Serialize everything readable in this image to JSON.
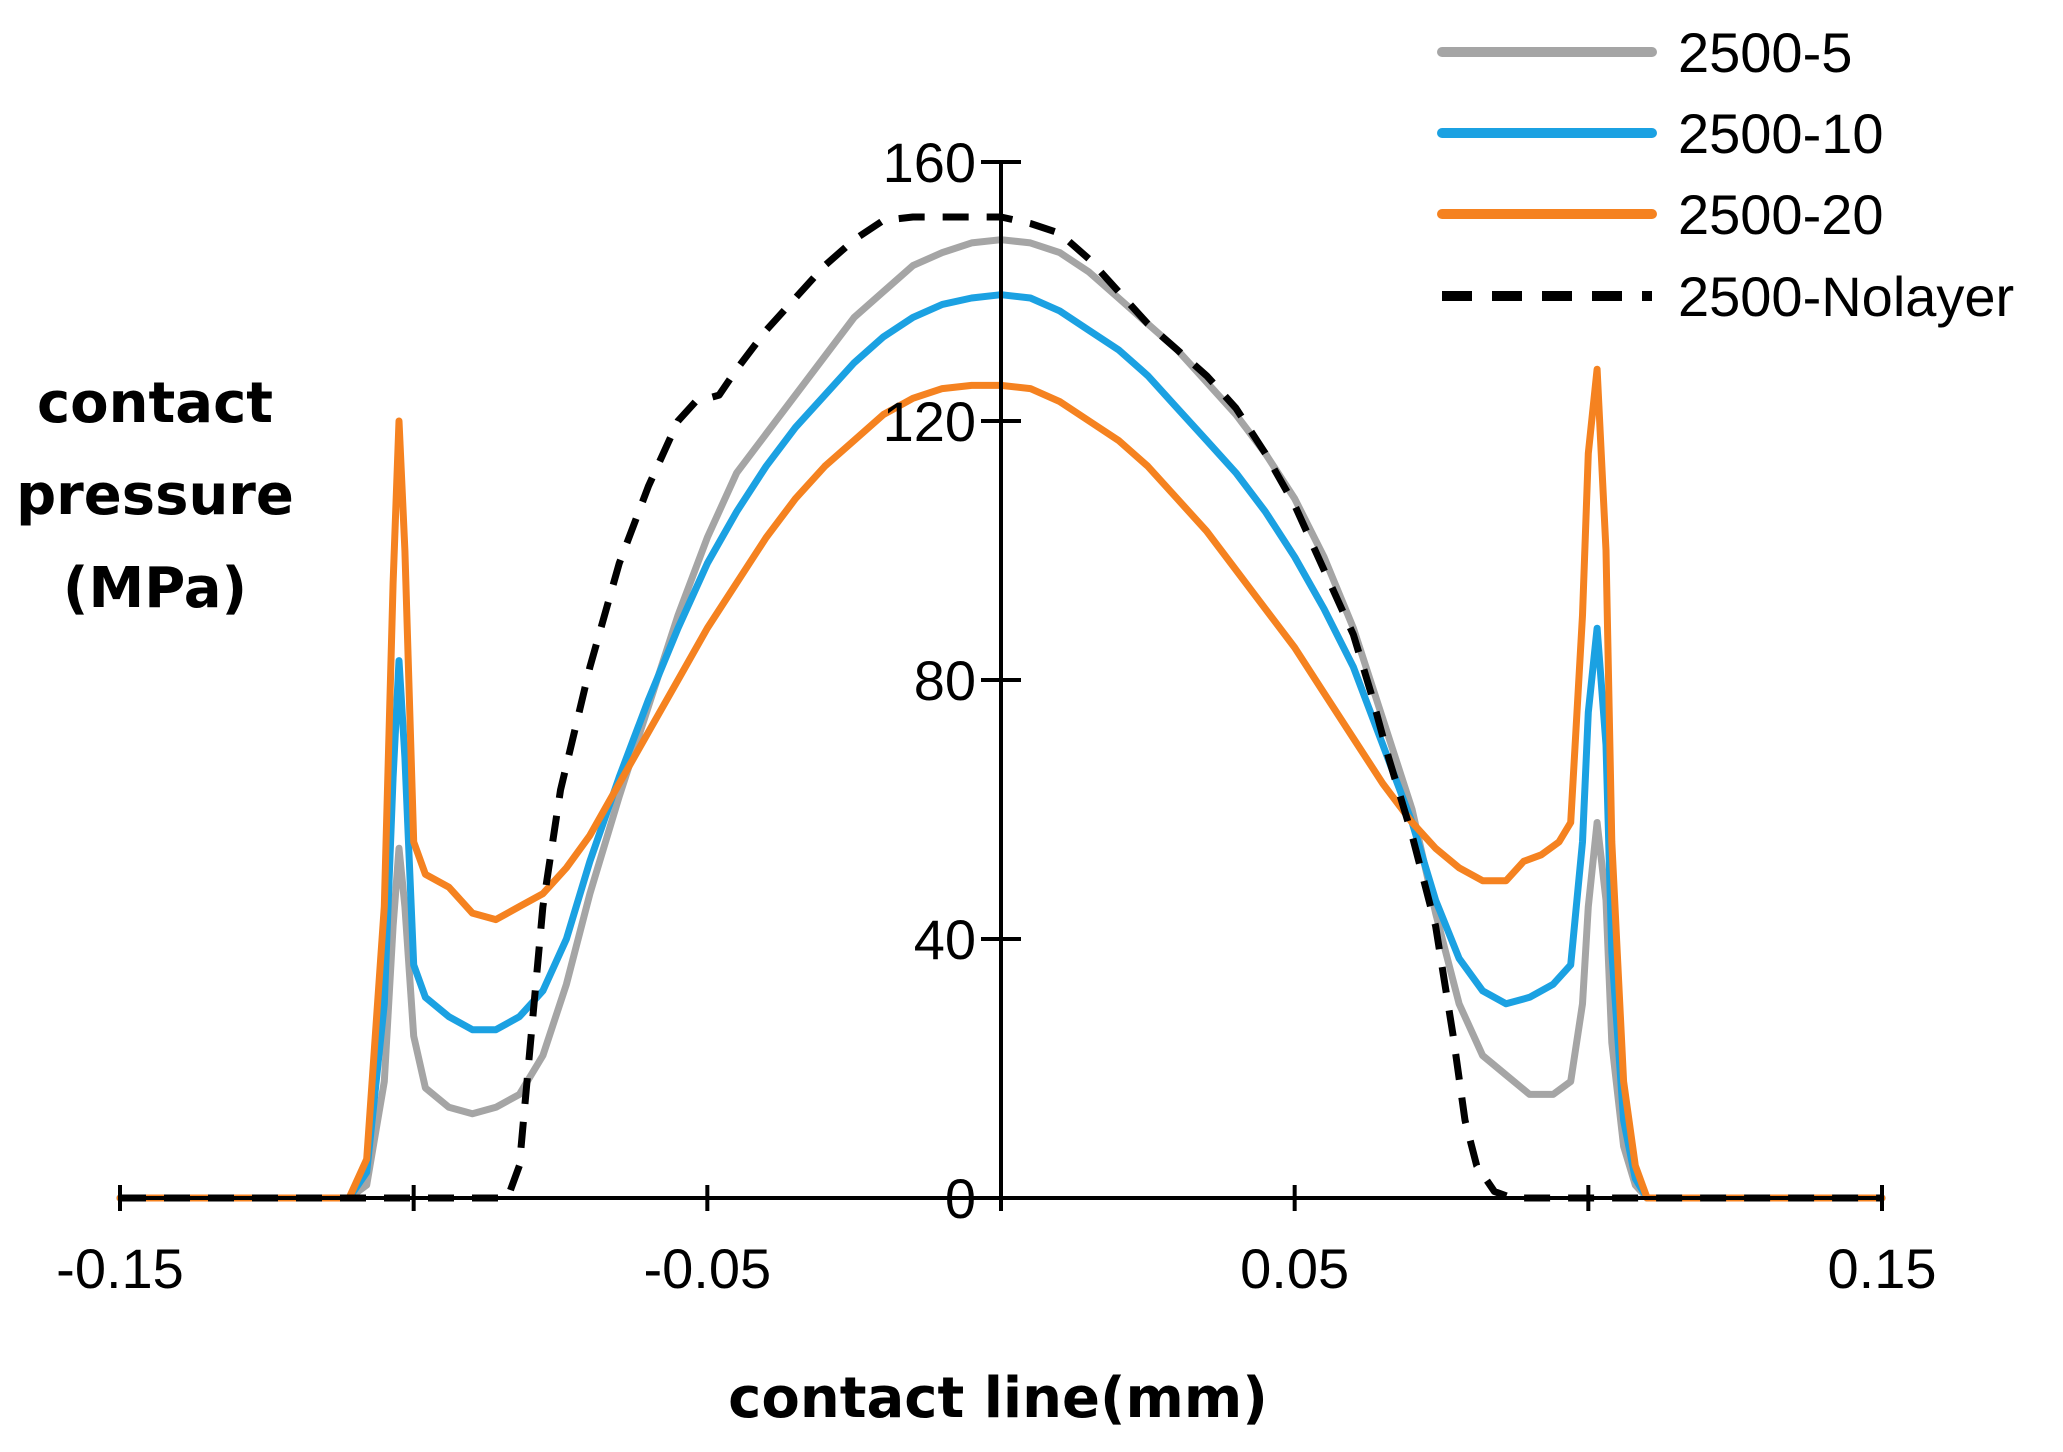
{
  "chart_data": {
    "type": "line",
    "title": "",
    "xlabel": "contact line(mm)",
    "ylabel_lines": [
      "contact",
      "pressure",
      "(MPa)"
    ],
    "xlim": [
      -0.15,
      0.15
    ],
    "ylim": [
      0,
      160
    ],
    "x_ticks": [
      -0.15,
      -0.05,
      0.05,
      0.15
    ],
    "x_tick_labels": [
      "-0.15",
      "-0.05",
      "0.05",
      "0.15"
    ],
    "x_minor_ticks": [
      -0.1,
      0,
      0.1
    ],
    "y_ticks": [
      0,
      40,
      80,
      120,
      160
    ],
    "y_tick_labels": [
      "0",
      "40",
      "80",
      "120",
      "160"
    ],
    "grid": false,
    "legend_position": "top-right",
    "series": [
      {
        "name": "2500-5",
        "color": "#a5a5a5",
        "dash": "solid",
        "points": [
          [
            -0.15,
            0
          ],
          [
            -0.111,
            0
          ],
          [
            -0.108,
            2
          ],
          [
            -0.105,
            18
          ],
          [
            -0.1035,
            42
          ],
          [
            -0.1025,
            54
          ],
          [
            -0.1015,
            45
          ],
          [
            -0.1,
            25
          ],
          [
            -0.098,
            17
          ],
          [
            -0.094,
            14
          ],
          [
            -0.09,
            13
          ],
          [
            -0.086,
            14
          ],
          [
            -0.082,
            16
          ],
          [
            -0.078,
            22
          ],
          [
            -0.074,
            33
          ],
          [
            -0.07,
            47
          ],
          [
            -0.065,
            62
          ],
          [
            -0.06,
            76
          ],
          [
            -0.055,
            90
          ],
          [
            -0.05,
            102
          ],
          [
            -0.045,
            112
          ],
          [
            -0.04,
            118
          ],
          [
            -0.035,
            124
          ],
          [
            -0.03,
            130
          ],
          [
            -0.025,
            136
          ],
          [
            -0.02,
            140
          ],
          [
            -0.015,
            144
          ],
          [
            -0.01,
            146
          ],
          [
            -0.005,
            147.5
          ],
          [
            0,
            148
          ],
          [
            0.005,
            147.5
          ],
          [
            0.01,
            146
          ],
          [
            0.015,
            143
          ],
          [
            0.02,
            139
          ],
          [
            0.025,
            135
          ],
          [
            0.03,
            131
          ],
          [
            0.035,
            126
          ],
          [
            0.04,
            121
          ],
          [
            0.045,
            115
          ],
          [
            0.05,
            108
          ],
          [
            0.055,
            99
          ],
          [
            0.06,
            88
          ],
          [
            0.065,
            74
          ],
          [
            0.07,
            60
          ],
          [
            0.074,
            44
          ],
          [
            0.078,
            30
          ],
          [
            0.082,
            22
          ],
          [
            0.086,
            19
          ],
          [
            0.09,
            16
          ],
          [
            0.094,
            16
          ],
          [
            0.097,
            18
          ],
          [
            0.099,
            30
          ],
          [
            0.1,
            45
          ],
          [
            0.1015,
            58
          ],
          [
            0.103,
            46
          ],
          [
            0.104,
            24
          ],
          [
            0.106,
            8
          ],
          [
            0.108,
            2
          ],
          [
            0.11,
            0
          ],
          [
            0.15,
            0
          ]
        ]
      },
      {
        "name": "2500-10",
        "color": "#1ba1e2",
        "dash": "solid",
        "points": [
          [
            -0.15,
            0
          ],
          [
            -0.111,
            0
          ],
          [
            -0.108,
            4
          ],
          [
            -0.105,
            30
          ],
          [
            -0.1035,
            65
          ],
          [
            -0.1025,
            83
          ],
          [
            -0.1015,
            68
          ],
          [
            -0.1,
            36
          ],
          [
            -0.098,
            31
          ],
          [
            -0.094,
            28
          ],
          [
            -0.09,
            26
          ],
          [
            -0.086,
            26
          ],
          [
            -0.082,
            28
          ],
          [
            -0.078,
            32
          ],
          [
            -0.074,
            40
          ],
          [
            -0.07,
            52
          ],
          [
            -0.065,
            65
          ],
          [
            -0.06,
            77
          ],
          [
            -0.055,
            88
          ],
          [
            -0.05,
            98
          ],
          [
            -0.045,
            106
          ],
          [
            -0.04,
            113
          ],
          [
            -0.035,
            119
          ],
          [
            -0.03,
            124
          ],
          [
            -0.025,
            129
          ],
          [
            -0.02,
            133
          ],
          [
            -0.015,
            136
          ],
          [
            -0.01,
            138
          ],
          [
            -0.005,
            139
          ],
          [
            0,
            139.5
          ],
          [
            0.005,
            139
          ],
          [
            0.01,
            137
          ],
          [
            0.015,
            134
          ],
          [
            0.02,
            131
          ],
          [
            0.025,
            127
          ],
          [
            0.03,
            122
          ],
          [
            0.035,
            117
          ],
          [
            0.04,
            112
          ],
          [
            0.045,
            106
          ],
          [
            0.05,
            99
          ],
          [
            0.055,
            91
          ],
          [
            0.06,
            82
          ],
          [
            0.065,
            70
          ],
          [
            0.07,
            58
          ],
          [
            0.074,
            46
          ],
          [
            0.078,
            37
          ],
          [
            0.082,
            32
          ],
          [
            0.086,
            30
          ],
          [
            0.09,
            31
          ],
          [
            0.094,
            33
          ],
          [
            0.097,
            36
          ],
          [
            0.099,
            55
          ],
          [
            0.1,
            75
          ],
          [
            0.1015,
            88
          ],
          [
            0.103,
            70
          ],
          [
            0.104,
            38
          ],
          [
            0.106,
            12
          ],
          [
            0.108,
            3
          ],
          [
            0.11,
            0
          ],
          [
            0.15,
            0
          ]
        ]
      },
      {
        "name": "2500-20",
        "color": "#f58220",
        "dash": "solid",
        "points": [
          [
            -0.15,
            0
          ],
          [
            -0.111,
            0
          ],
          [
            -0.108,
            6
          ],
          [
            -0.105,
            45
          ],
          [
            -0.1035,
            95
          ],
          [
            -0.1025,
            120
          ],
          [
            -0.1015,
            100
          ],
          [
            -0.1,
            55
          ],
          [
            -0.098,
            50
          ],
          [
            -0.094,
            48
          ],
          [
            -0.092,
            46
          ],
          [
            -0.09,
            44
          ],
          [
            -0.086,
            43
          ],
          [
            -0.082,
            45
          ],
          [
            -0.078,
            47
          ],
          [
            -0.074,
            51
          ],
          [
            -0.07,
            56
          ],
          [
            -0.065,
            64
          ],
          [
            -0.06,
            72
          ],
          [
            -0.055,
            80
          ],
          [
            -0.05,
            88
          ],
          [
            -0.045,
            95
          ],
          [
            -0.04,
            102
          ],
          [
            -0.035,
            108
          ],
          [
            -0.03,
            113
          ],
          [
            -0.025,
            117
          ],
          [
            -0.02,
            121
          ],
          [
            -0.015,
            123.5
          ],
          [
            -0.01,
            125
          ],
          [
            -0.005,
            125.5
          ],
          [
            0,
            125.5
          ],
          [
            0.005,
            125
          ],
          [
            0.01,
            123
          ],
          [
            0.015,
            120
          ],
          [
            0.02,
            117
          ],
          [
            0.025,
            113
          ],
          [
            0.03,
            108
          ],
          [
            0.035,
            103
          ],
          [
            0.04,
            97
          ],
          [
            0.045,
            91
          ],
          [
            0.05,
            85
          ],
          [
            0.055,
            78
          ],
          [
            0.06,
            71
          ],
          [
            0.065,
            64
          ],
          [
            0.07,
            58
          ],
          [
            0.074,
            54
          ],
          [
            0.078,
            51
          ],
          [
            0.082,
            49
          ],
          [
            0.086,
            49
          ],
          [
            0.089,
            52
          ],
          [
            0.092,
            53
          ],
          [
            0.095,
            55
          ],
          [
            0.097,
            58
          ],
          [
            0.099,
            90
          ],
          [
            0.1,
            115
          ],
          [
            0.1015,
            128
          ],
          [
            0.103,
            100
          ],
          [
            0.104,
            55
          ],
          [
            0.106,
            18
          ],
          [
            0.108,
            5
          ],
          [
            0.11,
            0
          ],
          [
            0.15,
            0
          ]
        ]
      },
      {
        "name": "2500-Nolayer",
        "color": "#000000",
        "dash": "dashed",
        "points": [
          [
            -0.15,
            0
          ],
          [
            -0.09,
            0
          ],
          [
            -0.084,
            0
          ],
          [
            -0.082,
            5
          ],
          [
            -0.08,
            25
          ],
          [
            -0.078,
            45
          ],
          [
            -0.075,
            63
          ],
          [
            -0.07,
            82
          ],
          [
            -0.065,
            98
          ],
          [
            -0.06,
            110
          ],
          [
            -0.055,
            120
          ],
          [
            -0.052,
            123
          ],
          [
            -0.048,
            124
          ],
          [
            -0.045,
            128
          ],
          [
            -0.04,
            134
          ],
          [
            -0.035,
            139
          ],
          [
            -0.03,
            144
          ],
          [
            -0.025,
            148
          ],
          [
            -0.02,
            151
          ],
          [
            -0.015,
            151.5
          ],
          [
            -0.01,
            151.5
          ],
          [
            -0.005,
            151.5
          ],
          [
            0,
            151.5
          ],
          [
            0.005,
            150.5
          ],
          [
            0.01,
            149
          ],
          [
            0.015,
            145
          ],
          [
            0.02,
            140
          ],
          [
            0.025,
            135
          ],
          [
            0.03,
            131
          ],
          [
            0.035,
            127
          ],
          [
            0.04,
            122
          ],
          [
            0.045,
            115
          ],
          [
            0.05,
            107
          ],
          [
            0.055,
            97
          ],
          [
            0.06,
            87
          ],
          [
            0.063,
            78
          ],
          [
            0.066,
            68
          ],
          [
            0.07,
            56
          ],
          [
            0.074,
            42
          ],
          [
            0.077,
            25
          ],
          [
            0.079,
            12
          ],
          [
            0.081,
            5
          ],
          [
            0.084,
            1
          ],
          [
            0.087,
            0
          ],
          [
            0.15,
            0
          ]
        ]
      }
    ]
  }
}
